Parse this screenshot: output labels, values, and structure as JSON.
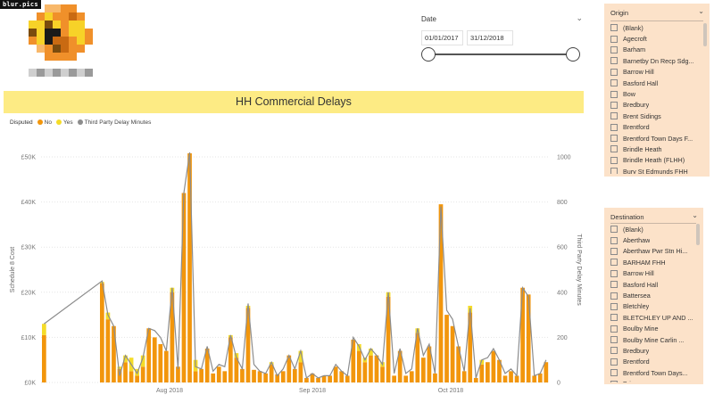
{
  "logo": {
    "tag": "blur.pics"
  },
  "date_slicer": {
    "title": "Date",
    "start": "01/01/2017",
    "end": "31/12/2018"
  },
  "chart": {
    "title": "HH Commercial Delays",
    "legend_title": "Disputed",
    "legend": [
      {
        "label": "No",
        "color": "#f2960c"
      },
      {
        "label": "Yes",
        "color": "#f5dc28"
      },
      {
        "label": "Third Party Delay Minutes",
        "color": "#8c8c8c"
      }
    ]
  },
  "chart_data": {
    "type": "bar",
    "stacked": true,
    "ylabel": "Schedule 8 Cost",
    "y2label": "Third Party Delay Minutes",
    "yticks": [
      "£0K",
      "£10K",
      "£20K",
      "£30K",
      "£40K",
      "£50K"
    ],
    "y2ticks": [
      "0",
      "200",
      "400",
      "600",
      "800",
      "1000"
    ],
    "ylim": [
      0,
      50000
    ],
    "y2lim": [
      0,
      1000
    ],
    "xticks": [
      "Aug 2018",
      "Sep 2018",
      "Oct 2018"
    ],
    "grid": true,
    "colors": {
      "No": "#f2960c",
      "Yes": "#f5dc28",
      "line": "#8c8c8c"
    },
    "series": [
      {
        "name": "No",
        "values": [
          10500,
          22000,
          14000,
          12500,
          3000,
          4500,
          2500,
          1500,
          3500,
          12000,
          10000,
          8500,
          7000,
          20000,
          3500,
          42000,
          50800,
          2500,
          3000,
          7500,
          2000,
          3500,
          2500,
          10000,
          5500,
          3000,
          16500,
          2800,
          2500,
          2000,
          4000,
          1800,
          2500,
          6000,
          3000,
          4500,
          1000,
          2000,
          1000,
          1500,
          1500,
          3500,
          2500,
          1500,
          9500,
          7000,
          4500,
          6000,
          6000,
          3500,
          19000,
          1500,
          7000,
          1500,
          2500,
          11000,
          5500,
          8000,
          2000,
          39500,
          15000,
          12500,
          8000,
          2500,
          15500,
          1000,
          4000,
          4500,
          7000,
          5000,
          1500,
          2500,
          1500,
          21000,
          19500,
          1500,
          2000,
          4500
        ]
      },
      {
        "name": "Yes",
        "values": [
          2500,
          300,
          1500,
          0,
          500,
          1500,
          3000,
          1500,
          2500,
          0,
          0,
          0,
          0,
          1000,
          0,
          0,
          0,
          2500,
          0,
          0,
          0,
          0,
          0,
          500,
          1000,
          0,
          500,
          0,
          0,
          0,
          500,
          0,
          0,
          0,
          0,
          2500,
          0,
          0,
          0,
          0,
          0,
          0,
          0,
          0,
          0,
          1500,
          1000,
          1500,
          0,
          1000,
          1000,
          0,
          0,
          0,
          0,
          1000,
          0,
          0,
          0,
          0,
          0,
          0,
          0,
          0,
          1500,
          0,
          1000,
          0,
          0,
          0,
          0,
          0,
          0,
          0,
          0,
          0,
          0,
          0
        ]
      }
    ],
    "line": [
      260,
      450,
      300,
      250,
      30,
      120,
      80,
      40,
      110,
      240,
      230,
      200,
      140,
      420,
      60,
      840,
      1020,
      70,
      60,
      160,
      50,
      80,
      70,
      210,
      110,
      60,
      350,
      80,
      50,
      40,
      90,
      30,
      60,
      120,
      60,
      140,
      20,
      40,
      20,
      30,
      30,
      80,
      50,
      30,
      200,
      160,
      100,
      150,
      120,
      80,
      400,
      40,
      150,
      40,
      60,
      240,
      120,
      170,
      40,
      780,
      320,
      280,
      160,
      50,
      330,
      20,
      100,
      110,
      150,
      100,
      40,
      60,
      30,
      420,
      380,
      30,
      40,
      100
    ]
  },
  "origin": {
    "title": "Origin",
    "items": [
      "(Blank)",
      "Agecroft",
      "Barham",
      "Barnetby Dn Recp Sdg...",
      "Barrow Hill",
      "Basford Hall",
      "Bow",
      "Bredbury",
      "Brent Sidings",
      "Brentford",
      "Brentford Town Days F...",
      "Brindle Heath",
      "Brindle Heath (FLHH)",
      "Bury St Edmunds FHH"
    ]
  },
  "destination": {
    "title": "Destination",
    "items": [
      "(Blank)",
      "Aberthaw",
      "Aberthaw Pwr Stn Hi...",
      "BARHAM FHH",
      "Barrow Hill",
      "Basford Hall",
      "Battersea",
      "Bletchley",
      "BLETCHLEY UP AND ...",
      "Boulby Mine",
      "Boulby Mine Carlin ...",
      "Bredbury",
      "Brentford",
      "Brentford Town Days...",
      "Briggs"
    ]
  }
}
